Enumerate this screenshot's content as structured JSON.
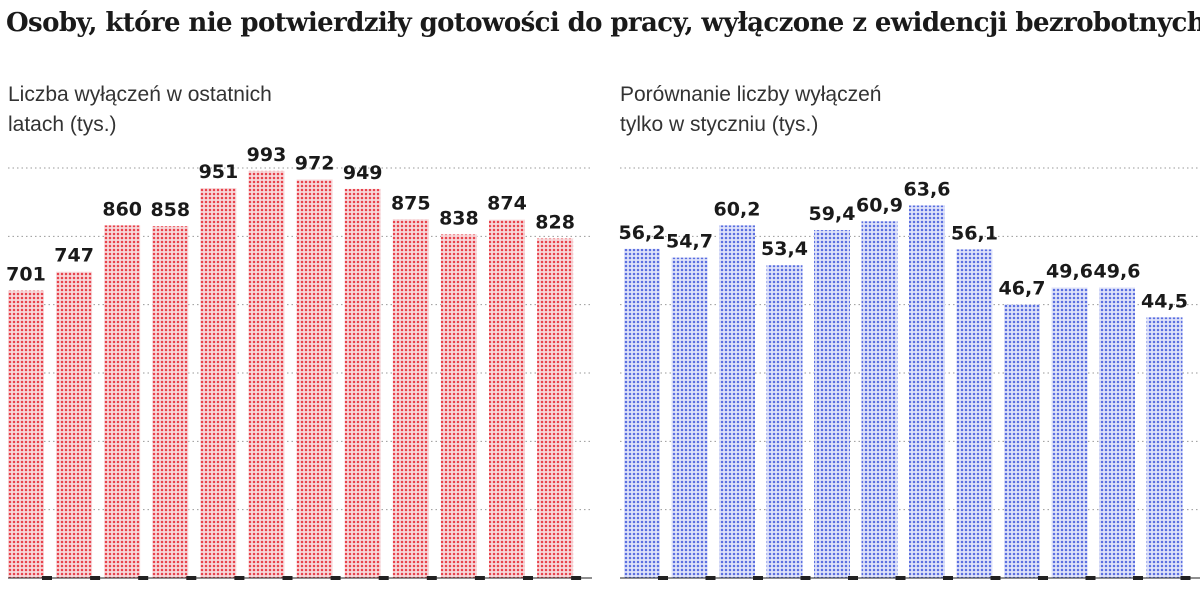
{
  "title": "Osoby, które nie potwierdziły gotowości do pracy, wyłączone z ewidencji bezrobotnych",
  "colors": {
    "left_bar": "#e8404a",
    "right_bar": "#5a6ee0",
    "grid": "#999999",
    "axis": "#222222"
  },
  "chart_data": [
    {
      "type": "bar",
      "title": "Liczba wyłączeń w ostatnich latach (tys.)",
      "title_lines": [
        "Liczba wyłączeń w ostatnich",
        "latach (tys.)"
      ],
      "values": [
        701,
        747,
        860,
        858,
        951,
        993,
        972,
        949,
        875,
        838,
        874,
        828
      ],
      "labels": [
        "701",
        "747",
        "860",
        "858",
        "951",
        "993",
        "972",
        "949",
        "875",
        "838",
        "874",
        "828"
      ],
      "ylim": [
        0,
        1000
      ],
      "grid": true
    },
    {
      "type": "bar",
      "title": "Porównanie liczby wyłączeń tylko w styczniu (tys.)",
      "title_lines": [
        "Porównanie liczby wyłączeń",
        "tylko w styczniu (tys.)"
      ],
      "values": [
        56.2,
        54.7,
        60.2,
        53.4,
        59.4,
        60.9,
        63.6,
        56.1,
        46.7,
        49.6,
        49.6,
        44.5
      ],
      "labels": [
        "56,2",
        "54,7",
        "60,2",
        "53,4",
        "59,4",
        "60,9",
        "63,6",
        "56,1",
        "46,7",
        "49,6",
        "49,6",
        "44,5"
      ],
      "ylim": [
        0,
        70
      ],
      "grid": true
    }
  ]
}
